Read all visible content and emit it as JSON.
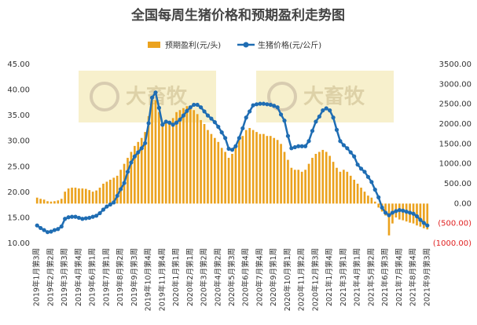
{
  "chart_data": {
    "type": "bar",
    "title": "全国每周生猪价格和预期盈利走势图",
    "watermark": "大畜牧",
    "categories": [
      "2019年1月第3周",
      null,
      null,
      null,
      "2019年2月第2周",
      null,
      null,
      null,
      "2019年3月第3周",
      null,
      null,
      null,
      "2019年4月第4周",
      null,
      null,
      null,
      "2019年6月第1周",
      null,
      null,
      null,
      "2019年7月第1周",
      null,
      null,
      null,
      "2019年8月第2周",
      null,
      null,
      null,
      "2019年9月第3周",
      null,
      null,
      null,
      "2019年10月第4周",
      null,
      null,
      null,
      "2019年11月第4周",
      null,
      null,
      null,
      "2020年1月第1周",
      null,
      null,
      null,
      "2020年2月第1周",
      null,
      null,
      null,
      "2020年3月第2周",
      null,
      null,
      null,
      "2020年4月第2周",
      null,
      null,
      null,
      "2020年5月第3周",
      null,
      null,
      null,
      "2020年6月第4周",
      null,
      null,
      null,
      "2020年7月第4周",
      null,
      null,
      null,
      "2020年9月第1周",
      null,
      null,
      null,
      "2020年10月第1周",
      null,
      null,
      null,
      "2020年11月第2周",
      null,
      null,
      null,
      "2020年12月第3周",
      null,
      null,
      null,
      "2021年1月第4周",
      null,
      null,
      null,
      "2021年3月第1周",
      null,
      null,
      null,
      "2021年4月第1周",
      null,
      null,
      null,
      "2021年5月第2周",
      null,
      null,
      null,
      "2021年6月第3周",
      null,
      null,
      null,
      "2021年7月第4周",
      null,
      null,
      null,
      "2021年8月第4周",
      null,
      null,
      null,
      "2021年9月第3周"
    ],
    "series": [
      {
        "name": "预期盈利(元/头)",
        "type": "bar",
        "axis": "y2",
        "color": "#eba21e",
        "values": [
          150,
          120,
          100,
          60,
          50,
          60,
          80,
          120,
          300,
          380,
          400,
          400,
          380,
          380,
          370,
          340,
          300,
          330,
          400,
          500,
          550,
          600,
          650,
          700,
          850,
          1000,
          1150,
          1300,
          1450,
          1550,
          1650,
          1800,
          2200,
          2650,
          2600,
          2300,
          2000,
          2100,
          2050,
          2150,
          2300,
          2350,
          2400,
          2450,
          2400,
          2350,
          2250,
          2100,
          2000,
          1850,
          1750,
          1650,
          1550,
          1400,
          1300,
          1150,
          1250,
          1400,
          1600,
          1700,
          1850,
          1900,
          1850,
          1800,
          1750,
          1750,
          1700,
          1700,
          1650,
          1600,
          1500,
          1300,
          1100,
          900,
          850,
          850,
          800,
          850,
          1000,
          1150,
          1250,
          1300,
          1350,
          1300,
          1200,
          1050,
          900,
          800,
          850,
          800,
          700,
          600,
          500,
          400,
          300,
          200,
          150,
          50,
          -100,
          -200,
          -300,
          -800,
          -500,
          -350,
          -400,
          -420,
          -450,
          -480,
          -500,
          -550,
          -580,
          -620,
          -650
        ]
      },
      {
        "name": "生猪价格(元/公斤)",
        "type": "line",
        "color": "#1f6db3",
        "values": [
          13.5,
          13.0,
          12.6,
          12.2,
          12.3,
          12.6,
          12.8,
          13.3,
          14.8,
          15.1,
          15.2,
          15.2,
          15.0,
          14.8,
          14.9,
          15.0,
          15.2,
          15.4,
          15.9,
          16.6,
          17.2,
          17.6,
          18.0,
          19.3,
          20.6,
          21.8,
          24.0,
          25.8,
          27.0,
          27.8,
          28.6,
          29.6,
          33.5,
          38.5,
          39.5,
          36.5,
          33.2,
          33.8,
          33.6,
          33.2,
          33.6,
          34.2,
          35.0,
          35.9,
          36.6,
          37.1,
          37.1,
          36.6,
          35.8,
          35.0,
          34.4,
          33.7,
          32.8,
          31.7,
          30.6,
          28.5,
          28.3,
          29.0,
          30.6,
          32.5,
          34.6,
          35.8,
          37.0,
          37.2,
          37.3,
          37.3,
          37.2,
          37.1,
          36.9,
          36.6,
          35.2,
          34.0,
          31.0,
          28.6,
          28.8,
          29.0,
          29.0,
          29.0,
          30.0,
          32.0,
          33.8,
          34.8,
          36.0,
          36.4,
          36.0,
          34.6,
          32.2,
          30.0,
          29.2,
          28.6,
          27.8,
          27.0,
          25.4,
          24.6,
          24.0,
          23.0,
          22.0,
          20.5,
          19.0,
          17.0,
          16.0,
          15.5,
          16.0,
          16.3,
          16.5,
          16.4,
          16.2,
          16.0,
          15.8,
          15.3,
          14.6,
          14.0,
          13.5
        ]
      }
    ],
    "ylim": [
      10,
      45
    ],
    "yticks": [
      {
        "value": 10,
        "label": "10.00"
      },
      {
        "value": 15,
        "label": "15.00"
      },
      {
        "value": 20,
        "label": "20.00"
      },
      {
        "value": 25,
        "label": "25.00"
      },
      {
        "value": 30,
        "label": "30.00"
      },
      {
        "value": 35,
        "label": "35.00"
      },
      {
        "value": 40,
        "label": "40.00"
      },
      {
        "value": 45,
        "label": "45.00"
      }
    ],
    "y2lim": [
      -1000,
      3500
    ],
    "y2ticks": [
      {
        "value": -1000,
        "label": "(1000.00)"
      },
      {
        "value": -500,
        "label": "(500.00)"
      },
      {
        "value": 0,
        "label": "0.00"
      },
      {
        "value": 500,
        "label": "500.00"
      },
      {
        "value": 1000,
        "label": "1000.00"
      },
      {
        "value": 1500,
        "label": "1500.00"
      },
      {
        "value": 2000,
        "label": "2000.00"
      },
      {
        "value": 2500,
        "label": "2500.00"
      },
      {
        "value": 3000,
        "label": "3000.00"
      },
      {
        "value": 3500,
        "label": "3500.00"
      }
    ],
    "grid": false
  }
}
